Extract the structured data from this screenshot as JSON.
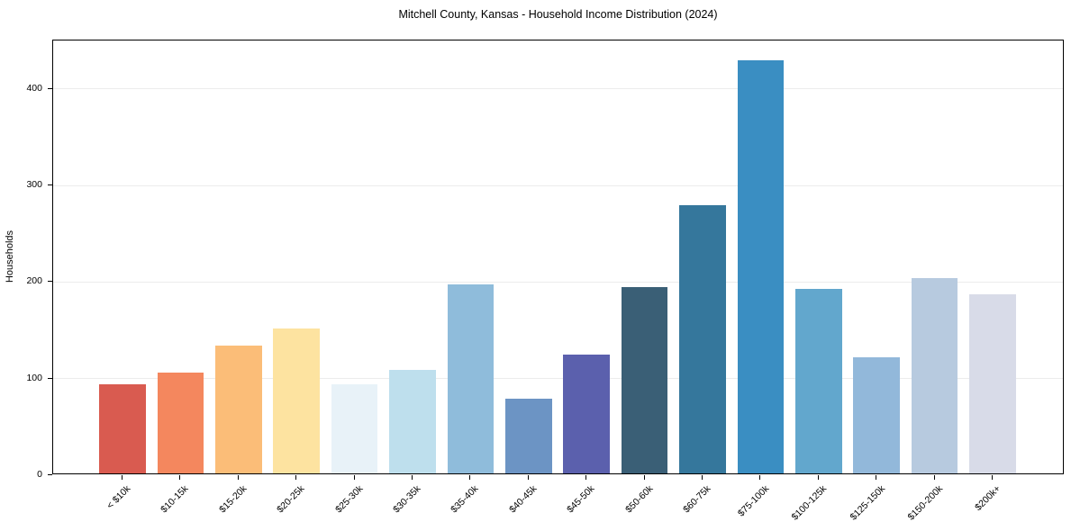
{
  "chart_data": {
    "type": "bar",
    "title": "Mitchell County, Kansas - Household Income Distribution (2024)",
    "xlabel": "",
    "ylabel": "Households",
    "categories": [
      "< $10k",
      "$10-15k",
      "$15-20k",
      "$20-25k",
      "$25-30k",
      "$30-35k",
      "$35-40k",
      "$40-45k",
      "$45-50k",
      "$50-60k",
      "$60-75k",
      "$75-100k",
      "$100-125k",
      "$125-150k",
      "$150-200k",
      "$200k+"
    ],
    "values": [
      92,
      104,
      132,
      150,
      92,
      107,
      196,
      77,
      123,
      193,
      278,
      428,
      191,
      120,
      202,
      185
    ],
    "bar_colors": [
      "#d95b50",
      "#f4875e",
      "#fbbd78",
      "#fde3a0",
      "#e8f2f8",
      "#bedfed",
      "#8fbcdb",
      "#6c94c4",
      "#5b60ad",
      "#3a5f76",
      "#35779c",
      "#3a8ec2",
      "#62a7cd",
      "#92b8da",
      "#b7cadf",
      "#d8dbe8"
    ],
    "ylim": [
      0,
      450
    ],
    "yticks": [
      0,
      100,
      200,
      300,
      400
    ],
    "grid": "horizontal-light",
    "legend": "none",
    "axis_color": "#000000",
    "grid_color": "#ececec",
    "background": "#ffffff"
  }
}
